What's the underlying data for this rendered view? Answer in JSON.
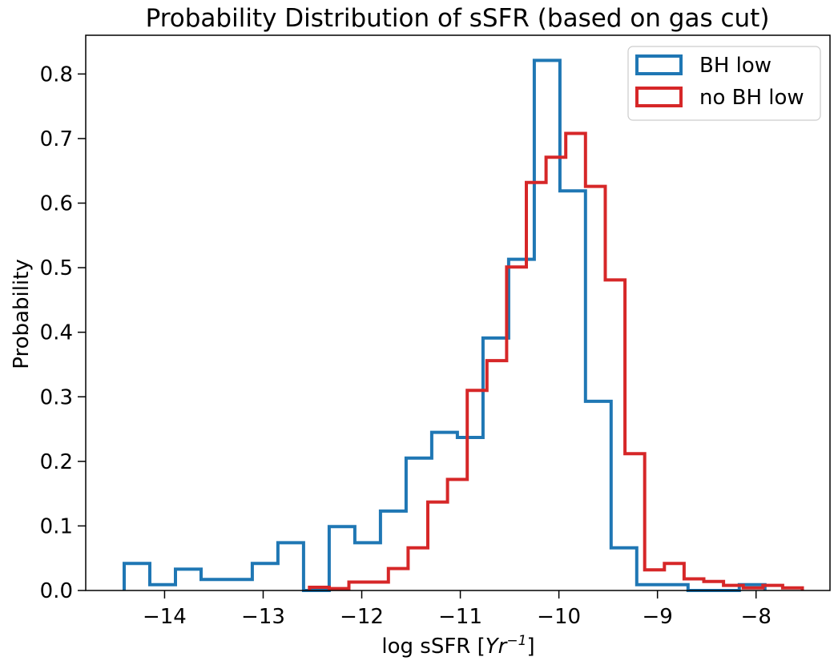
{
  "chart_data": {
    "type": "histogram",
    "title": "Probability Distribution of sSFR (based on gas cut)",
    "xlabel_parts": [
      "log sSFR [",
      "Yr",
      "−1",
      "]"
    ],
    "ylabel": "Probability",
    "xlim": [
      -14.8,
      -7.25
    ],
    "ylim": [
      0.0,
      0.86
    ],
    "x_ticks": [
      -14,
      -13,
      -12,
      -11,
      -10,
      -9,
      -8
    ],
    "x_tick_labels": [
      "−14",
      "−13",
      "−12",
      "−11",
      "−10",
      "−9",
      "−8"
    ],
    "y_ticks": [
      0.0,
      0.1,
      0.2,
      0.3,
      0.4,
      0.5,
      0.6,
      0.7,
      0.8
    ],
    "y_tick_labels": [
      "0.0",
      "0.1",
      "0.2",
      "0.3",
      "0.4",
      "0.5",
      "0.6",
      "0.7",
      "0.8"
    ],
    "grid": false,
    "legend_position": "top-right",
    "series": [
      {
        "name": "BH low",
        "color": "#1f77b4",
        "edges": [
          -14.41,
          -14.15,
          -13.89,
          -13.63,
          -13.37,
          -13.11,
          -12.85,
          -12.59,
          -12.33,
          -12.07,
          -11.81,
          -11.55,
          -11.29,
          -11.03,
          -10.77,
          -10.51,
          -10.25,
          -9.99,
          -9.73,
          -9.47,
          -9.21,
          -8.95,
          -8.69,
          -8.43,
          -8.17,
          -7.91
        ],
        "values": [
          0.042,
          0.009,
          0.033,
          0.017,
          0.017,
          0.042,
          0.074,
          0.0,
          0.099,
          0.074,
          0.123,
          0.205,
          0.245,
          0.237,
          0.391,
          0.513,
          0.821,
          0.619,
          0.293,
          0.066,
          0.009,
          0.009,
          0.0,
          0.0,
          0.009
        ]
      },
      {
        "name": "no BH low",
        "color": "#d62728",
        "edges": [
          -12.53,
          -12.33,
          -12.13,
          -11.93,
          -11.73,
          -11.53,
          -11.33,
          -11.13,
          -10.93,
          -10.73,
          -10.53,
          -10.33,
          -10.13,
          -9.93,
          -9.73,
          -9.53,
          -9.33,
          -9.13,
          -8.93,
          -8.73,
          -8.53,
          -8.33,
          -8.13,
          -7.93,
          -7.73,
          -7.53
        ],
        "values": [
          0.005,
          0.003,
          0.013,
          0.013,
          0.034,
          0.066,
          0.137,
          0.172,
          0.31,
          0.356,
          0.501,
          0.632,
          0.671,
          0.708,
          0.626,
          0.481,
          0.212,
          0.032,
          0.042,
          0.018,
          0.014,
          0.008,
          0.004,
          0.008,
          0.004
        ]
      }
    ]
  }
}
